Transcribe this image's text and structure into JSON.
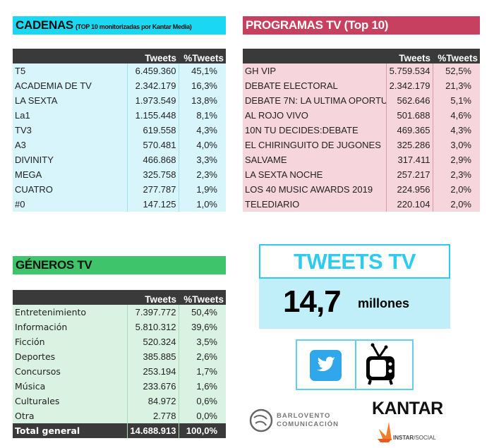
{
  "cadenas": {
    "title": "CADENAS",
    "subtitle": "(TOP 10 monitorizadas por Kantar Media)",
    "col_tweets": "Tweets",
    "col_pct": "%Tweets",
    "rows": [
      [
        "T5",
        "6.459.360",
        "45,1%"
      ],
      [
        "ACADEMIA DE TV",
        "2.342.179",
        "16,3%"
      ],
      [
        "LA SEXTA",
        "1.973.549",
        "13,8%"
      ],
      [
        "La1",
        "1.155.448",
        "8,1%"
      ],
      [
        "TV3",
        "619.558",
        "4,3%"
      ],
      [
        "A3",
        "570.481",
        "4,0%"
      ],
      [
        "DIVINITY",
        "466.868",
        "3,3%"
      ],
      [
        "MEGA",
        "325.758",
        "2,3%"
      ],
      [
        "CUATRO",
        "277.787",
        "1,9%"
      ],
      [
        "#0",
        "147.125",
        "1,0%"
      ]
    ]
  },
  "programas": {
    "title": "PROGRAMAS TV (Top 10)",
    "col_tweets": "Tweets",
    "col_pct": "%Tweets",
    "rows": [
      [
        "GH VIP",
        "5.759.534",
        "52,5%"
      ],
      [
        "DEBATE ELECTORAL",
        "2.342.179",
        "21,3%"
      ],
      [
        "DEBATE 7N: LA ULTIMA OPORTU",
        "562.646",
        "5,1%"
      ],
      [
        "AL ROJO VIVO",
        "501.688",
        "4,6%"
      ],
      [
        "10N TU DECIDES:DEBATE",
        "469.365",
        "4,3%"
      ],
      [
        "EL CHIRINGUITO DE JUGONES",
        "325.286",
        "3,0%"
      ],
      [
        "SALVAME",
        "317.411",
        "2,9%"
      ],
      [
        "LA SEXTA NOCHE",
        "257.217",
        "2,3%"
      ],
      [
        "LOS 40 MUSIC AWARDS 2019",
        "224.956",
        "2,0%"
      ],
      [
        "TELEDIARIO",
        "220.104",
        "2,0%"
      ]
    ]
  },
  "generos": {
    "title": "GÉNEROS TV",
    "col_tweets": "Tweets",
    "col_pct": "%Tweets",
    "rows": [
      [
        "Entretenimiento",
        "7.397.772",
        "50,4%"
      ],
      [
        "Información",
        "5.810.312",
        "39,6%"
      ],
      [
        "Ficción",
        "520.324",
        "3,5%"
      ],
      [
        "Deportes",
        "385.885",
        "2,6%"
      ],
      [
        "Concursos",
        "253.194",
        "1,7%"
      ],
      [
        "Música",
        "233.676",
        "1,6%"
      ],
      [
        "Culturales",
        "84.972",
        "0,6%"
      ],
      [
        "Otra",
        "2.778",
        "0,0%"
      ]
    ],
    "total": [
      "Total general",
      "14.688.913",
      "100,0%"
    ]
  },
  "summary": {
    "title": "TWEETS TV",
    "value": "14,7",
    "unit": "millones"
  },
  "icons": [
    "twitter-icon",
    "tv-icon"
  ],
  "logos": {
    "barlovento_line1": "BARLOVENTO",
    "barlovento_line2": "COMUNICACIÓN",
    "kantar": "KANTAR",
    "instar_a": "INSTAR",
    "instar_b": "/SOCIAL"
  },
  "colors": {
    "cadenas": "#1ad8f2",
    "programas": "#c8405f",
    "generos": "#3ec46b",
    "tweets_tv": "#2ecbf0",
    "header_dark": "#3a3a3a"
  }
}
